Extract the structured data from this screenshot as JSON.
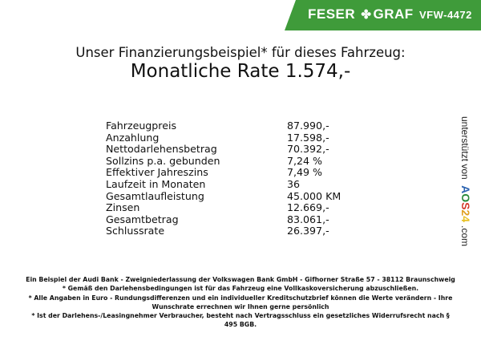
{
  "header": {
    "brand_left": "FESER",
    "brand_right": "GRAF",
    "brand_icon": "clover-icon",
    "vehicle_code": "VFW-4472",
    "brand_color": "#3f9b3a"
  },
  "title": {
    "line1": "Unser Finanzierungsbeispiel* für dieses Fahrzeug:",
    "line2": "Monatliche Rate 1.574,-"
  },
  "rows": [
    {
      "label": "Fahrzeugpreis",
      "value": "87.990,-"
    },
    {
      "label": "Anzahlung",
      "value": "17.598,-"
    },
    {
      "label": "Nettodarlehensbetrag",
      "value": "70.392,-"
    },
    {
      "label": "Sollzins p.a. gebunden",
      "value": "7,24 %"
    },
    {
      "label": "Effektiver Jahreszins",
      "value": "7,49 %"
    },
    {
      "label": "Laufzeit in Monaten",
      "value": "36"
    },
    {
      "label": "Gesamtlaufleistung",
      "value": "45.000 KM"
    },
    {
      "label": "Zinsen",
      "value": "12.669,-"
    },
    {
      "label": "Gesamtbetrag",
      "value": "83.061,-"
    },
    {
      "label": "Schlussrate",
      "value": "26.397,-"
    }
  ],
  "side": {
    "prefix": "unterstützt von",
    "logo": "AOS24",
    "suffix": ".com"
  },
  "footer": [
    "Ein Beispiel der Audi Bank - Zweigniederlassung der Volkswagen Bank GmbH - Gifhorner Straße 57 - 38112 Braunschweig",
    "* Gemäß den Darlehensbedingungen ist für das Fahrzeug eine Vollkaskoversicherung abzuschließen.",
    "* Alle Angaben in Euro - Rundungsdifferenzen und ein individueller Kreditschutzbrief können die Werte verändern - Ihre Wunschrate errechnen wir Ihnen gerne persönlich",
    "* Ist der Darlehens-/Leasingnehmer Verbraucher, besteht nach Vertragsschluss ein gesetzliches Widerrufsrecht nach § 495 BGB."
  ]
}
